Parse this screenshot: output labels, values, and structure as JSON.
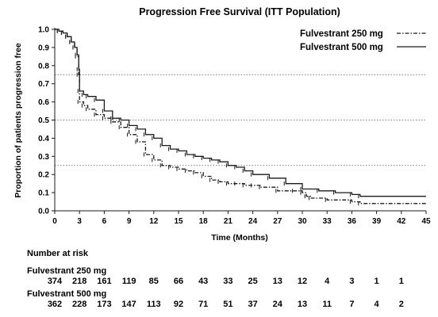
{
  "chart_data": {
    "type": "line",
    "title": "Progression Free Survival (ITT Population)",
    "xlabel": "Time (Months)",
    "ylabel": "Proportion of patients progression free",
    "xlim": [
      0,
      45
    ],
    "ylim": [
      0,
      1.0
    ],
    "x_ticks": [
      "0",
      "3",
      "6",
      "9",
      "12",
      "15",
      "18",
      "21",
      "24",
      "27",
      "30",
      "33",
      "36",
      "39",
      "42",
      "45"
    ],
    "y_ticks": [
      "0.0",
      "0.1",
      "0.2",
      "0.3",
      "0.4",
      "0.5",
      "0.6",
      "0.7",
      "0.8",
      "0.9",
      "1.0"
    ],
    "reference_lines": [
      0.25,
      0.5,
      0.75
    ],
    "grid": false,
    "legend_position": "top-right",
    "series": [
      {
        "name": "Fulvestrant 250 mg",
        "style": "dash-dot",
        "x": [
          0,
          0.5,
          1,
          1.5,
          2,
          2.4,
          2.7,
          2.9,
          3,
          3.5,
          4,
          5,
          6,
          7,
          8,
          9,
          10,
          11,
          12,
          13,
          14,
          15,
          16,
          17,
          18,
          19,
          20,
          21,
          22,
          23,
          24,
          25,
          27,
          29,
          30,
          30.5,
          31,
          33,
          36,
          37,
          45
        ],
        "y": [
          1.0,
          0.99,
          0.98,
          0.96,
          0.93,
          0.9,
          0.85,
          0.75,
          0.6,
          0.58,
          0.56,
          0.53,
          0.51,
          0.49,
          0.46,
          0.42,
          0.38,
          0.31,
          0.28,
          0.25,
          0.24,
          0.23,
          0.22,
          0.21,
          0.19,
          0.17,
          0.16,
          0.15,
          0.15,
          0.14,
          0.14,
          0.13,
          0.11,
          0.11,
          0.1,
          0.08,
          0.07,
          0.06,
          0.05,
          0.04,
          0.04
        ]
      },
      {
        "name": "Fulvestrant 500 mg",
        "style": "solid",
        "x": [
          0,
          0.5,
          1,
          1.5,
          2,
          2.4,
          2.7,
          2.9,
          3,
          3.5,
          4,
          5,
          6,
          7,
          8,
          9,
          10,
          11,
          12,
          13,
          14,
          15,
          16,
          17,
          18,
          19,
          20,
          21,
          22,
          23,
          24,
          26,
          28,
          30,
          32,
          34,
          36,
          37,
          45
        ],
        "y": [
          1.0,
          0.99,
          0.98,
          0.96,
          0.93,
          0.9,
          0.86,
          0.78,
          0.66,
          0.64,
          0.63,
          0.61,
          0.55,
          0.51,
          0.5,
          0.47,
          0.45,
          0.42,
          0.4,
          0.36,
          0.34,
          0.33,
          0.31,
          0.3,
          0.29,
          0.28,
          0.27,
          0.25,
          0.24,
          0.22,
          0.2,
          0.18,
          0.15,
          0.12,
          0.11,
          0.1,
          0.09,
          0.08,
          0.08
        ]
      }
    ],
    "number_at_risk": {
      "heading": "Number at risk",
      "groups": [
        {
          "label": "Fulvestrant 250 mg",
          "values": [
            "374",
            "218",
            "161",
            "119",
            "85",
            "66",
            "43",
            "33",
            "25",
            "13",
            "12",
            "4",
            "3",
            "1",
            "1"
          ]
        },
        {
          "label": "Fulvestrant 500 mg",
          "values": [
            "362",
            "228",
            "173",
            "147",
            "113",
            "92",
            "71",
            "51",
            "37",
            "24",
            "13",
            "11",
            "7",
            "4",
            "2"
          ]
        }
      ]
    }
  },
  "colors": {
    "ink": "#1a1a1a",
    "reference": "#555555"
  }
}
